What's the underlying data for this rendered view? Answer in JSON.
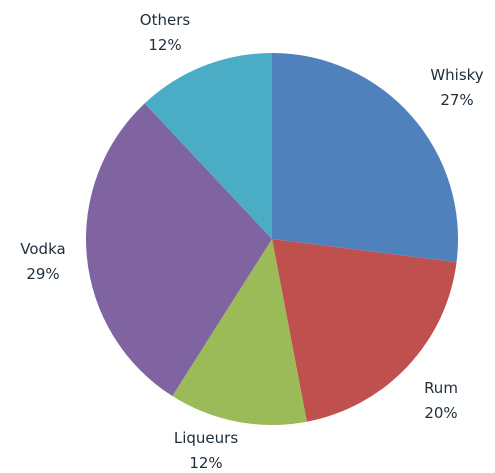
{
  "chart_data": {
    "type": "pie",
    "slices": [
      {
        "label": "Whisky",
        "value": 27,
        "pct_label": "27%",
        "color": "#4f81bd"
      },
      {
        "label": "Rum",
        "value": 20,
        "pct_label": "20%",
        "color": "#c0504d"
      },
      {
        "label": "Liqueurs",
        "value": 12,
        "pct_label": "12%",
        "color": "#9bbb59"
      },
      {
        "label": "Vodka",
        "value": 29,
        "pct_label": "29%",
        "color": "#8064a2"
      },
      {
        "label": "Others",
        "value": 12,
        "pct_label": "12%",
        "color": "#4bacc6"
      }
    ],
    "start_angle_deg": 0,
    "direction": "clockwise",
    "legend": "none",
    "data_labels": "outside"
  }
}
